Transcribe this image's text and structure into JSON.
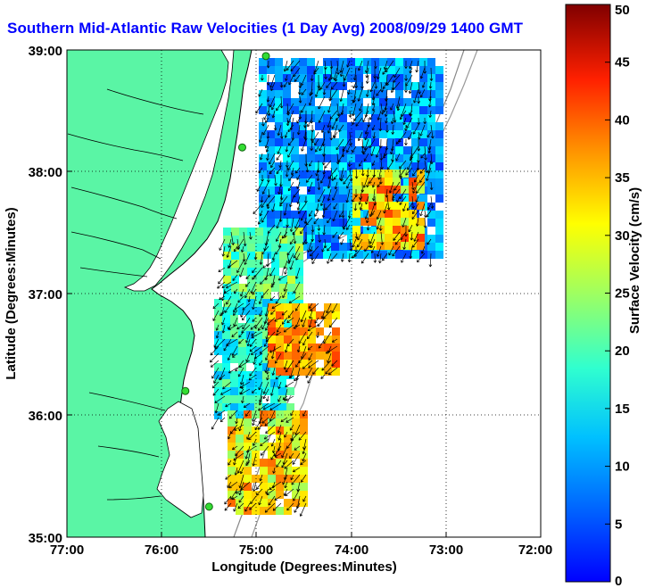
{
  "title": "Southern Mid-Atlantic Raw Velocities (1 Day Avg) 2008/09/29 1400 GMT",
  "map": {
    "xlabel": "Longitude (Degrees:Minutes)",
    "ylabel": "Latitude (Degrees:Minutes)",
    "x_ticks": [
      "77:00",
      "76:00",
      "75:00",
      "74:00",
      "73:00",
      "72:00"
    ],
    "y_ticks": [
      "39:00",
      "38:00",
      "37:00",
      "36:00",
      "35:00"
    ],
    "x_range": [
      -77,
      -72
    ],
    "y_range": [
      35,
      39
    ],
    "grid": "dotted",
    "land_color": "#5af5a5",
    "stations": [
      {
        "lon": -74.9,
        "lat": 38.95
      },
      {
        "lon": -75.15,
        "lat": 38.2
      },
      {
        "lon": -75.75,
        "lat": 36.2
      },
      {
        "lon": -75.5,
        "lat": 35.25
      }
    ]
  },
  "colorbar": {
    "label": "Surface Velocity (cm/s)",
    "ticks": [
      "0",
      "5",
      "10",
      "15",
      "20",
      "25",
      "30",
      "35",
      "40",
      "45",
      "50"
    ],
    "min": 0,
    "max": 50
  }
}
